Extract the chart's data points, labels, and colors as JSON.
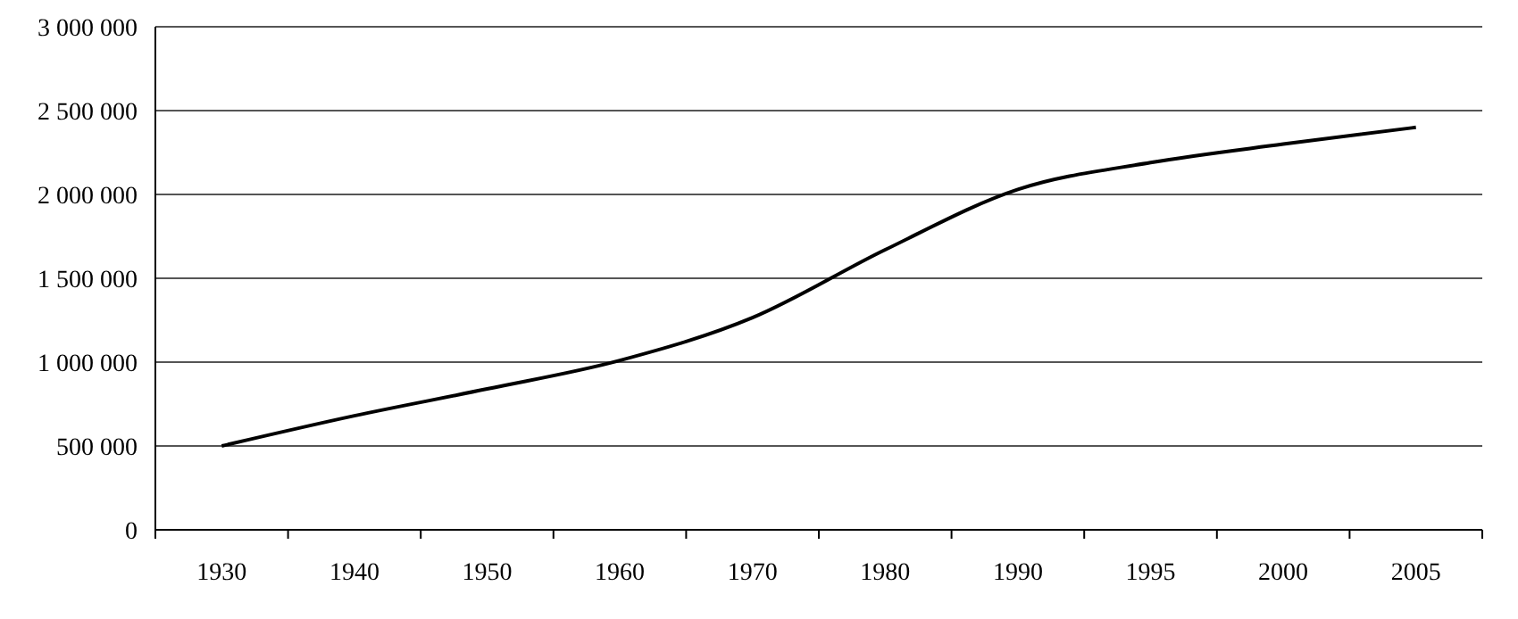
{
  "chart_data": {
    "type": "line",
    "categories": [
      "1930",
      "1940",
      "1950",
      "1960",
      "1970",
      "1980",
      "1990",
      "1995",
      "2000",
      "2005"
    ],
    "series": [
      {
        "color": "#000000",
        "values": [
          500000,
          680000,
          840000,
          1010000,
          1265000,
          1670000,
          2030000,
          2190000,
          2300000,
          2400000
        ]
      }
    ],
    "ylim": [
      0,
      3000000
    ],
    "yticks": [
      0,
      {
        "value": 500000,
        "label": "500 000"
      },
      {
        "value": 1000000,
        "label": "1 000 000"
      },
      {
        "value": 1500000,
        "label": "1 500 000"
      },
      {
        "value": 2000000,
        "label": "2 000 000"
      },
      {
        "value": 2500000,
        "label": "2 500 000"
      },
      {
        "value": 3000000,
        "label": "3 000 000"
      }
    ],
    "grid": "y",
    "marker": "none",
    "line_style": "solid"
  }
}
